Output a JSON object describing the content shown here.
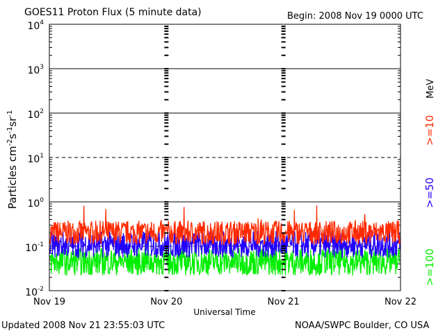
{
  "header": {
    "title": "GOES11 Proton Flux (5 minute data)",
    "begin": "Begin: 2008 Nov 19 0000 UTC"
  },
  "footer": {
    "updated": "Updated 2008 Nov 21 23:55:03 UTC",
    "credit": "NOAA/SWPC Boulder, CO USA"
  },
  "chart_data": {
    "type": "line",
    "title": "GOES11 Proton Flux (5 minute data)",
    "xlabel": "Universal Time",
    "ylabel": "Particles cm-2s-1sr-1",
    "y_scale": "log",
    "ylim": [
      0.01,
      10000
    ],
    "x_ticks": [
      "Nov 19",
      "Nov 20",
      "Nov 21",
      "Nov 22"
    ],
    "y_ticks": [
      {
        "base": "10",
        "exp": "4"
      },
      {
        "base": "10",
        "exp": "3"
      },
      {
        "base": "10",
        "exp": "2"
      },
      {
        "base": "10",
        "exp": "1"
      },
      {
        "base": "10",
        "exp": "0"
      },
      {
        "base": "10",
        "exp": "-1"
      },
      {
        "base": "10",
        "exp": "-2"
      }
    ],
    "right_label_unit": "MeV",
    "series": [
      {
        "name": ">=10",
        "color": "#ff2a00",
        "typical_value": 0.2
      },
      {
        "name": ">=50",
        "color": "#2200ff",
        "typical_value": 0.1
      },
      {
        "name": ">=100",
        "color": "#00ee00",
        "typical_value": 0.04
      }
    ],
    "grid": "horizontal dashed at 10 and 0.1 pfu",
    "x_range": [
      "2008-11-19",
      "2008-11-22"
    ]
  }
}
